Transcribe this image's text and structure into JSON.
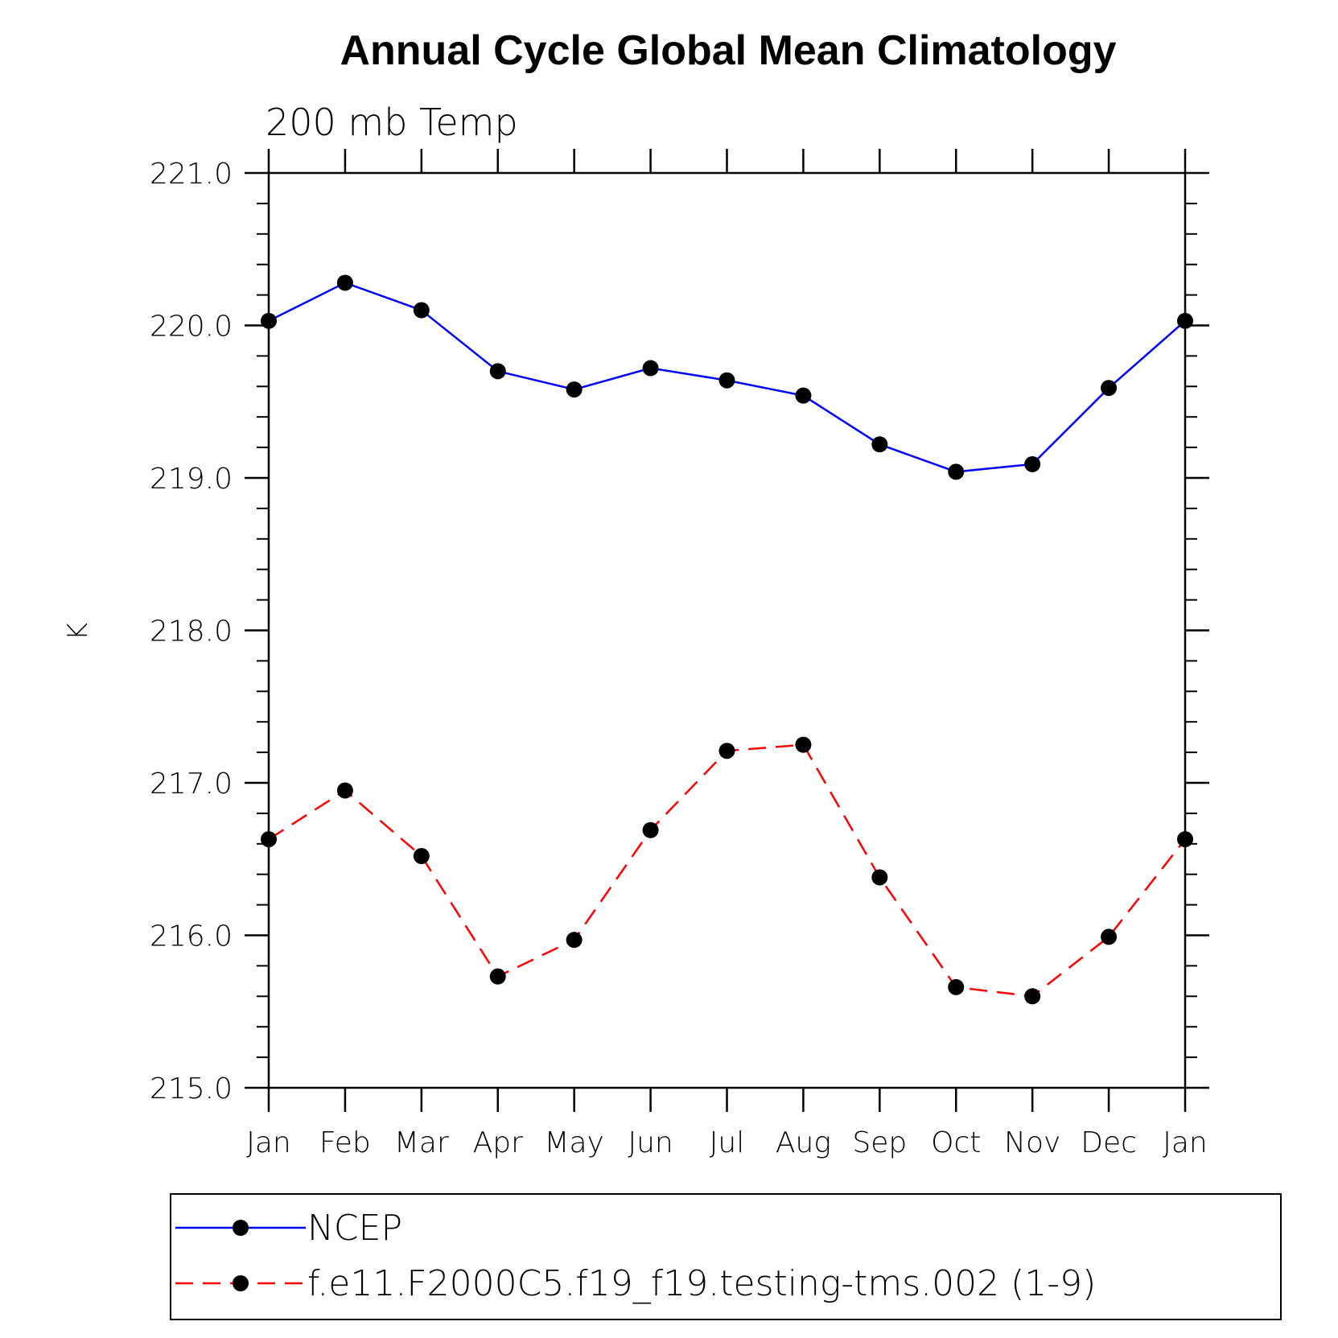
{
  "chart_data": {
    "type": "line",
    "title": "Annual Cycle Global Mean Climatology",
    "subtitle": "200 mb Temp",
    "ylabel": "K",
    "xlabel": "",
    "categories": [
      "Jan",
      "Feb",
      "Mar",
      "Apr",
      "May",
      "Jun",
      "Jul",
      "Aug",
      "Sep",
      "Oct",
      "Nov",
      "Dec",
      "Jan"
    ],
    "ylim": [
      215.0,
      221.0
    ],
    "yticks": [
      "215.0",
      "216.0",
      "217.0",
      "218.0",
      "219.0",
      "220.0",
      "221.0"
    ],
    "grid": false,
    "legend_position": "bottom",
    "series": [
      {
        "name": "NCEP",
        "color": "#0000ff",
        "line_style": "solid",
        "marker": "filled-circle",
        "values": [
          220.03,
          220.28,
          220.1,
          219.7,
          219.58,
          219.72,
          219.64,
          219.54,
          219.22,
          219.04,
          219.09,
          219.59,
          220.03
        ]
      },
      {
        "name": "f.e11.F2000C5.f19_f19.testing-tms.002 (1-9)",
        "color": "#ff0000",
        "line_style": "dashed",
        "marker": "filled-circle",
        "values": [
          216.63,
          216.95,
          216.52,
          215.73,
          215.97,
          216.69,
          217.21,
          217.25,
          216.38,
          215.66,
          215.6,
          215.99,
          216.63
        ]
      }
    ]
  }
}
